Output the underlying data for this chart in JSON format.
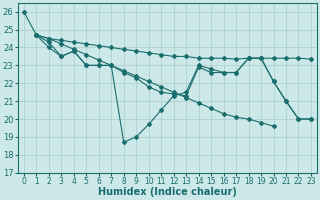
{
  "xlabel": "Humidex (Indice chaleur)",
  "background_color": "#cce8e8",
  "grid_color": "#aacccc",
  "line_color": "#1a6e6e",
  "xlim": [
    -0.5,
    23.5
  ],
  "ylim": [
    17,
    26.5
  ],
  "yticks": [
    17,
    18,
    19,
    20,
    21,
    22,
    23,
    24,
    25,
    26
  ],
  "xticks": [
    0,
    1,
    2,
    3,
    4,
    5,
    6,
    7,
    8,
    9,
    10,
    11,
    12,
    13,
    14,
    15,
    16,
    17,
    18,
    19,
    20,
    21,
    22,
    23
  ],
  "series1_x": [
    0,
    1,
    2,
    3,
    4,
    5,
    6,
    7,
    8,
    9,
    10,
    11,
    12,
    13,
    14,
    15,
    16,
    17,
    18,
    19,
    20,
    21,
    22,
    23
  ],
  "series1_y": [
    26.0,
    24.7,
    24.0,
    23.5,
    23.8,
    23.0,
    23.0,
    23.0,
    18.7,
    19.0,
    19.7,
    20.5,
    21.3,
    21.5,
    23.0,
    22.8,
    22.6,
    22.6,
    23.4,
    23.4,
    22.1,
    21.0,
    20.0,
    20.0
  ],
  "series2_x": [
    1,
    2,
    3,
    4,
    5,
    6,
    7,
    8,
    9,
    10,
    11,
    12,
    13,
    14,
    15,
    16,
    17,
    18,
    19,
    20,
    21,
    22,
    23
  ],
  "series2_y": [
    24.7,
    24.5,
    24.4,
    24.3,
    24.2,
    24.1,
    24.0,
    23.9,
    23.8,
    23.7,
    23.6,
    23.5,
    23.5,
    23.4,
    23.4,
    23.4,
    23.35,
    23.4,
    23.4,
    23.4,
    23.4,
    23.4,
    23.35
  ],
  "series3_x": [
    1,
    2,
    3,
    4,
    5,
    6,
    7,
    8,
    9,
    10,
    11,
    12,
    13,
    14,
    15,
    16,
    17,
    18,
    19,
    20,
    21,
    22,
    23
  ],
  "series3_y": [
    24.7,
    24.3,
    23.5,
    23.8,
    23.0,
    23.0,
    23.0,
    22.6,
    22.3,
    21.8,
    21.5,
    21.4,
    21.3,
    22.9,
    22.6,
    22.6,
    22.6,
    23.4,
    23.4,
    22.1,
    21.0,
    20.0,
    20.0
  ],
  "series4_x": [
    1,
    2,
    3,
    4,
    5,
    6,
    7,
    8,
    9,
    10,
    11,
    12,
    13,
    14,
    15,
    16,
    17,
    18,
    19,
    20
  ],
  "series4_y": [
    24.7,
    24.5,
    24.2,
    23.9,
    23.6,
    23.3,
    23.0,
    22.7,
    22.4,
    22.1,
    21.8,
    21.5,
    21.2,
    20.9,
    20.6,
    20.3,
    20.1,
    20.0,
    19.8,
    19.6
  ]
}
